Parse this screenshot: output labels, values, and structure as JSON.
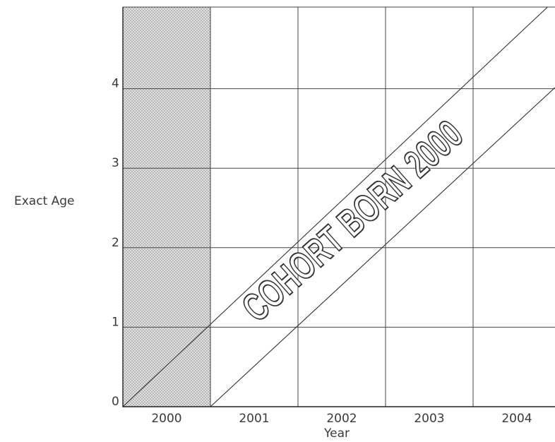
{
  "diagram": {
    "y_axis_title": "Exact Age",
    "x_axis_title": "Year",
    "y_tick_labels": [
      "0",
      "1",
      "2",
      "3",
      "4"
    ],
    "x_tick_labels": [
      "2000",
      "2001",
      "2002",
      "2003",
      "2004"
    ],
    "band_label": "COHORT BORN 2000",
    "shaded_column_label": "2000",
    "colors": {
      "shaded": "#cfcfcf",
      "lines": "#444444",
      "text": "#3a3a3a"
    }
  }
}
